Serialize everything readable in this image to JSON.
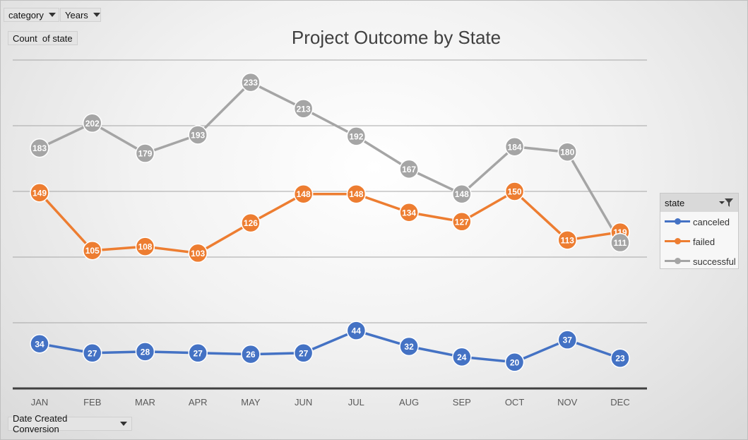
{
  "pivot": {
    "filters": [
      "category",
      "Years"
    ],
    "values_field": "Count  of state",
    "axis_field": "Date Created Conversion"
  },
  "legend": {
    "title": "state"
  },
  "chart_data": {
    "type": "line",
    "title": "Project Outcome by State",
    "categories": [
      "JAN",
      "FEB",
      "MAR",
      "APR",
      "MAY",
      "JUN",
      "JUL",
      "AUG",
      "SEP",
      "OCT",
      "NOV",
      "DEC"
    ],
    "ylim": [
      0,
      250
    ],
    "grid": true,
    "legend_position": "right",
    "series": [
      {
        "name": "canceled",
        "color": "#4472c4",
        "values": [
          34,
          27,
          28,
          27,
          26,
          27,
          44,
          32,
          24,
          20,
          37,
          23
        ]
      },
      {
        "name": "failed",
        "color": "#ed7d31",
        "values": [
          149,
          105,
          108,
          103,
          126,
          148,
          148,
          134,
          127,
          150,
          113,
          119
        ]
      },
      {
        "name": "successful",
        "color": "#a5a5a5",
        "values": [
          183,
          202,
          179,
          193,
          233,
          213,
          192,
          167,
          148,
          184,
          180,
          111
        ]
      }
    ]
  }
}
